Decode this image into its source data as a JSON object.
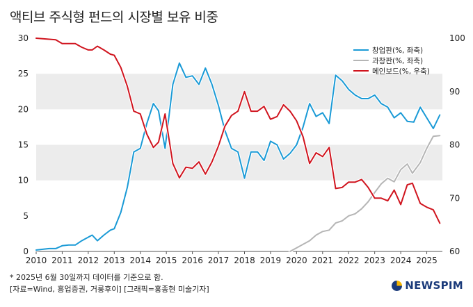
{
  "title": "액티브 주식형 펀드의 시장별 보유 비중",
  "footnote1": "* 2025년 6월 30일까지 데이터를 기준으로 함.",
  "footnote2": "[자료=Wind, 흥업증권, 거룽후이] [그래픽=홍종현 미술기자]",
  "logo": "NEWSPIM",
  "chart_data": {
    "type": "line",
    "title": "액티브 주식형 펀드의 시장별 보유 비중",
    "xlabel": "",
    "x_ticks": [
      "2010",
      "2011",
      "2012",
      "2013",
      "2014",
      "2015",
      "2016",
      "2017",
      "2018",
      "2019",
      "2020",
      "2021",
      "2022",
      "2023",
      "2024",
      "2025"
    ],
    "xlim": [
      2010.0,
      2025.6
    ],
    "y_left": {
      "lim": [
        0,
        30
      ],
      "ticks": [
        0,
        5,
        10,
        15,
        20,
        25,
        30
      ]
    },
    "y_right": {
      "lim": [
        60,
        100
      ],
      "ticks": [
        60,
        70,
        80,
        90,
        100
      ]
    },
    "legend_position": "top-right",
    "grid_bands": true,
    "series": [
      {
        "name": "창업판(%, 좌축)",
        "axis": "left",
        "color": "#1a9ad6",
        "points": [
          [
            2010.0,
            0.2
          ],
          [
            2010.25,
            0.3
          ],
          [
            2010.5,
            0.4
          ],
          [
            2010.75,
            0.4
          ],
          [
            2011.0,
            0.8
          ],
          [
            2011.25,
            0.9
          ],
          [
            2011.5,
            0.9
          ],
          [
            2011.75,
            1.5
          ],
          [
            2012.0,
            2.0
          ],
          [
            2012.15,
            2.3
          ],
          [
            2012.35,
            1.5
          ],
          [
            2012.6,
            2.3
          ],
          [
            2012.85,
            3.0
          ],
          [
            2013.0,
            3.2
          ],
          [
            2013.25,
            5.5
          ],
          [
            2013.5,
            9.0
          ],
          [
            2013.75,
            14.0
          ],
          [
            2014.0,
            14.5
          ],
          [
            2014.25,
            18.0
          ],
          [
            2014.5,
            20.8
          ],
          [
            2014.7,
            19.8
          ],
          [
            2014.95,
            14.5
          ],
          [
            2015.25,
            23.5
          ],
          [
            2015.5,
            26.5
          ],
          [
            2015.75,
            24.5
          ],
          [
            2016.0,
            24.7
          ],
          [
            2016.25,
            23.5
          ],
          [
            2016.5,
            25.8
          ],
          [
            2016.75,
            23.5
          ],
          [
            2017.0,
            20.5
          ],
          [
            2017.25,
            17.0
          ],
          [
            2017.5,
            14.5
          ],
          [
            2017.75,
            14.0
          ],
          [
            2018.0,
            10.3
          ],
          [
            2018.25,
            14.0
          ],
          [
            2018.5,
            14.0
          ],
          [
            2018.75,
            12.8
          ],
          [
            2019.0,
            15.5
          ],
          [
            2019.25,
            15.0
          ],
          [
            2019.5,
            13.0
          ],
          [
            2019.75,
            13.8
          ],
          [
            2020.0,
            15.0
          ],
          [
            2020.25,
            17.5
          ],
          [
            2020.5,
            20.8
          ],
          [
            2020.75,
            19.0
          ],
          [
            2021.0,
            19.5
          ],
          [
            2021.25,
            18.0
          ],
          [
            2021.5,
            24.8
          ],
          [
            2021.75,
            24.0
          ],
          [
            2022.0,
            22.8
          ],
          [
            2022.25,
            22.0
          ],
          [
            2022.5,
            21.5
          ],
          [
            2022.75,
            21.5
          ],
          [
            2023.0,
            22.0
          ],
          [
            2023.25,
            20.8
          ],
          [
            2023.5,
            20.3
          ],
          [
            2023.75,
            18.8
          ],
          [
            2024.0,
            19.5
          ],
          [
            2024.25,
            18.3
          ],
          [
            2024.5,
            18.2
          ],
          [
            2024.75,
            20.3
          ],
          [
            2025.0,
            18.8
          ],
          [
            2025.25,
            17.3
          ],
          [
            2025.5,
            19.2
          ]
        ]
      },
      {
        "name": "과창판(%, 좌축)",
        "axis": "left",
        "color": "#b5b5b5",
        "points": [
          [
            2019.75,
            0.0
          ],
          [
            2020.0,
            0.5
          ],
          [
            2020.25,
            1.0
          ],
          [
            2020.5,
            1.5
          ],
          [
            2020.75,
            2.3
          ],
          [
            2021.0,
            2.8
          ],
          [
            2021.25,
            3.0
          ],
          [
            2021.5,
            4.0
          ],
          [
            2021.75,
            4.3
          ],
          [
            2022.0,
            5.0
          ],
          [
            2022.25,
            5.3
          ],
          [
            2022.5,
            6.0
          ],
          [
            2022.75,
            7.0
          ],
          [
            2023.0,
            8.3
          ],
          [
            2023.25,
            9.5
          ],
          [
            2023.5,
            10.3
          ],
          [
            2023.75,
            9.8
          ],
          [
            2024.0,
            11.5
          ],
          [
            2024.25,
            12.3
          ],
          [
            2024.45,
            11.0
          ],
          [
            2024.75,
            12.5
          ],
          [
            2025.0,
            14.5
          ],
          [
            2025.25,
            16.2
          ],
          [
            2025.5,
            16.3
          ]
        ]
      },
      {
        "name": "메인보드(%, 우축)",
        "axis": "right",
        "color": "#d0141e",
        "points": [
          [
            2010.0,
            100.0
          ],
          [
            2010.25,
            99.9
          ],
          [
            2010.5,
            99.8
          ],
          [
            2010.75,
            99.7
          ],
          [
            2011.0,
            99.0
          ],
          [
            2011.25,
            99.0
          ],
          [
            2011.5,
            99.0
          ],
          [
            2011.75,
            98.3
          ],
          [
            2012.0,
            97.8
          ],
          [
            2012.15,
            97.8
          ],
          [
            2012.35,
            98.5
          ],
          [
            2012.6,
            97.8
          ],
          [
            2012.85,
            97.0
          ],
          [
            2013.0,
            96.8
          ],
          [
            2013.25,
            94.5
          ],
          [
            2013.5,
            91.0
          ],
          [
            2013.75,
            86.3
          ],
          [
            2014.0,
            85.8
          ],
          [
            2014.25,
            82.0
          ],
          [
            2014.5,
            79.5
          ],
          [
            2014.7,
            80.5
          ],
          [
            2014.95,
            85.8
          ],
          [
            2015.25,
            76.5
          ],
          [
            2015.5,
            73.8
          ],
          [
            2015.75,
            75.8
          ],
          [
            2016.0,
            75.6
          ],
          [
            2016.25,
            76.8
          ],
          [
            2016.5,
            74.5
          ],
          [
            2016.75,
            76.8
          ],
          [
            2017.0,
            79.8
          ],
          [
            2017.25,
            83.5
          ],
          [
            2017.5,
            85.5
          ],
          [
            2017.75,
            86.3
          ],
          [
            2018.0,
            90.0
          ],
          [
            2018.25,
            86.3
          ],
          [
            2018.5,
            86.3
          ],
          [
            2018.75,
            87.2
          ],
          [
            2019.0,
            84.8
          ],
          [
            2019.25,
            85.3
          ],
          [
            2019.5,
            87.5
          ],
          [
            2019.75,
            86.3
          ],
          [
            2020.0,
            84.5
          ],
          [
            2020.25,
            81.5
          ],
          [
            2020.5,
            76.5
          ],
          [
            2020.75,
            78.5
          ],
          [
            2021.0,
            77.8
          ],
          [
            2021.25,
            79.5
          ],
          [
            2021.5,
            71.8
          ],
          [
            2021.75,
            72.0
          ],
          [
            2022.0,
            73.0
          ],
          [
            2022.25,
            73.0
          ],
          [
            2022.5,
            73.5
          ],
          [
            2022.75,
            72.0
          ],
          [
            2023.0,
            70.0
          ],
          [
            2023.25,
            70.0
          ],
          [
            2023.5,
            69.5
          ],
          [
            2023.75,
            71.5
          ],
          [
            2024.0,
            68.8
          ],
          [
            2024.25,
            72.5
          ],
          [
            2024.45,
            72.8
          ],
          [
            2024.75,
            69.0
          ],
          [
            2025.0,
            68.3
          ],
          [
            2025.25,
            67.8
          ],
          [
            2025.5,
            65.3
          ]
        ]
      }
    ]
  }
}
